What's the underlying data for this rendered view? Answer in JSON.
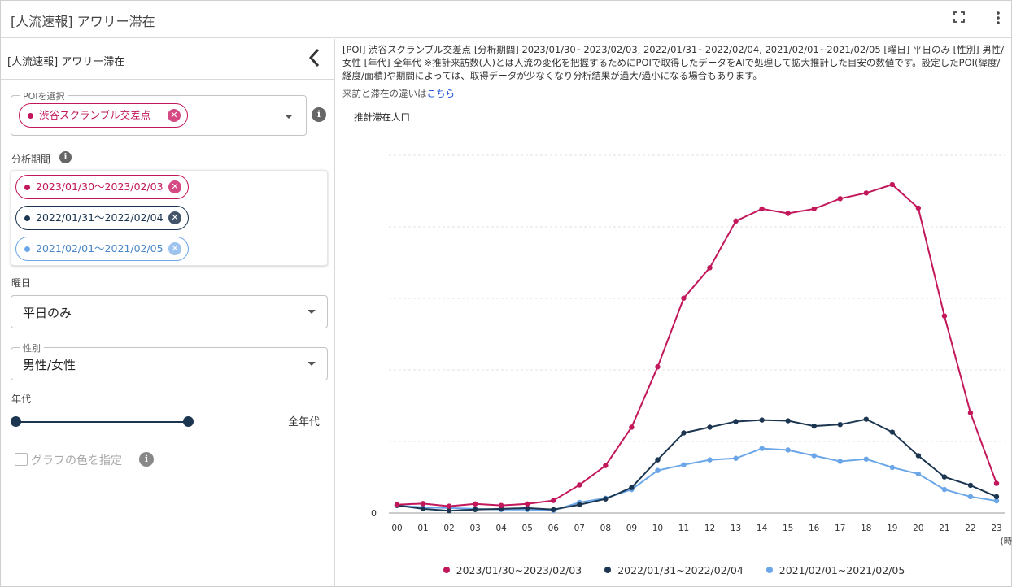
{
  "app": {
    "title": "[人流速報] アワリー滞在"
  },
  "sidebar": {
    "title": "[人流速報] アワリー滞在",
    "poi": {
      "label": "POIを選択",
      "selected": "渋谷スクランブル交差点",
      "color": "#c2185b"
    },
    "period": {
      "label": "分析期間",
      "items": [
        {
          "label": "2023/01/30〜2023/02/03",
          "color": "#c2185b"
        },
        {
          "label": "2022/01/31〜2022/02/04",
          "color": "#1c3550"
        },
        {
          "label": "2021/02/01〜2021/02/05",
          "color": "#6aa6e8"
        }
      ]
    },
    "weekday": {
      "label": "曜日",
      "value": "平日のみ"
    },
    "gender": {
      "label": "性別",
      "value": "男性/女性"
    },
    "age": {
      "label": "年代",
      "value": "全年代",
      "range": [
        0,
        1
      ]
    },
    "color_option": {
      "label": "グラフの色を指定",
      "checked": false
    }
  },
  "main": {
    "description": "[POI] 渋谷スクランブル交差点 [分析期間] 2023/01/30~2023/02/03, 2022/01/31~2022/02/04, 2021/02/01~2021/02/05 [曜日] 平日のみ [性別] 男性/女性 [年代] 全年代 ※推計来訪数(人)とは人流の変化を把握するためにPOIで取得したデータをAIで処理して拡大推計した目安の数値です。設定したPOI(緯度/経度/面積)や期間によっては、取得データが少なくなり分析結果が過大/過小になる場合もあります。",
    "note_prefix": "来訪と滞在の違いは",
    "note_link": "こちら"
  },
  "chart_data": {
    "type": "line",
    "ylabel": "推計滞在人口",
    "xunit": "(時)",
    "categories": [
      "00",
      "01",
      "02",
      "03",
      "04",
      "05",
      "06",
      "07",
      "08",
      "09",
      "10",
      "11",
      "12",
      "13",
      "14",
      "15",
      "16",
      "17",
      "18",
      "19",
      "20",
      "21",
      "22",
      "23"
    ],
    "ylim": [
      0,
      100
    ],
    "y_ticks": [
      0
    ],
    "series": [
      {
        "name": "2023/01/30~2023/02/03",
        "color": "#c2185b",
        "values": [
          2.2,
          2.5,
          1.8,
          2.4,
          2.0,
          2.4,
          3.3,
          7.4,
          12.5,
          22.6,
          38.5,
          56.6,
          64.6,
          76.9,
          80.1,
          78.9,
          80.1,
          82.8,
          84.3,
          86.5,
          80.3,
          51.9,
          26.4,
          7.8
        ]
      },
      {
        "name": "2022/01/31~2022/02/04",
        "color": "#1c3550",
        "values": [
          2.0,
          1.1,
          0.6,
          0.9,
          1.1,
          1.3,
          0.9,
          2.2,
          3.7,
          6.7,
          14.0,
          21.1,
          22.6,
          24.1,
          24.5,
          24.3,
          22.9,
          23.3,
          24.7,
          21.3,
          15.1,
          9.5,
          7.3,
          4.3
        ]
      },
      {
        "name": "2021/02/01~2021/02/05",
        "color": "#6aa6e8",
        "values": [
          2.0,
          1.5,
          1.3,
          1.1,
          0.9,
          0.9,
          0.7,
          2.8,
          3.9,
          6.2,
          11.2,
          12.7,
          14.0,
          14.4,
          17.0,
          16.6,
          15.1,
          13.6,
          14.2,
          12.0,
          10.3,
          6.2,
          4.3,
          3.2
        ]
      }
    ],
    "grid": true,
    "legend": "bottom"
  }
}
